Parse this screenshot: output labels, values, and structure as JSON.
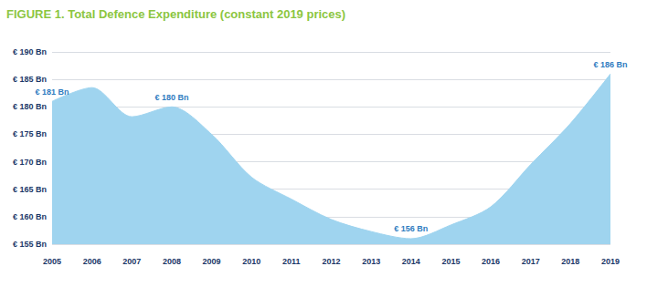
{
  "chart_data": {
    "type": "area",
    "title": "FIGURE 1. Total Defence Expenditure (constant 2019 prices)",
    "categories": [
      "2005",
      "2006",
      "2007",
      "2008",
      "2009",
      "2010",
      "2011",
      "2012",
      "2013",
      "2014",
      "2015",
      "2016",
      "2017",
      "2018",
      "2019"
    ],
    "values": [
      181,
      183.5,
      178.2,
      180,
      175,
      167.2,
      163.2,
      159.5,
      157.3,
      156,
      158.5,
      161.8,
      169.5,
      177,
      186
    ],
    "color": "#9fd4ef",
    "ylim": [
      155,
      190
    ],
    "yticks": [
      {
        "value": 155,
        "label": "€ 155 Bn"
      },
      {
        "value": 160,
        "label": "€ 160 Bn"
      },
      {
        "value": 165,
        "label": "€ 165 Bn"
      },
      {
        "value": 170,
        "label": "€ 170 Bn"
      },
      {
        "value": 175,
        "label": "€ 175 Bn"
      },
      {
        "value": 180,
        "label": "€ 180 Bn"
      },
      {
        "value": 185,
        "label": "€ 185 Bn"
      },
      {
        "value": 190,
        "label": "€ 190 Bn"
      }
    ],
    "grid": true,
    "annotations": [
      {
        "x": "2005",
        "label": "€ 181 Bn"
      },
      {
        "x": "2008",
        "label": "€ 180 Bn"
      },
      {
        "x": "2014",
        "label": "€ 156 Bn"
      },
      {
        "x": "2019",
        "label": "€ 186 Bn"
      }
    ]
  }
}
